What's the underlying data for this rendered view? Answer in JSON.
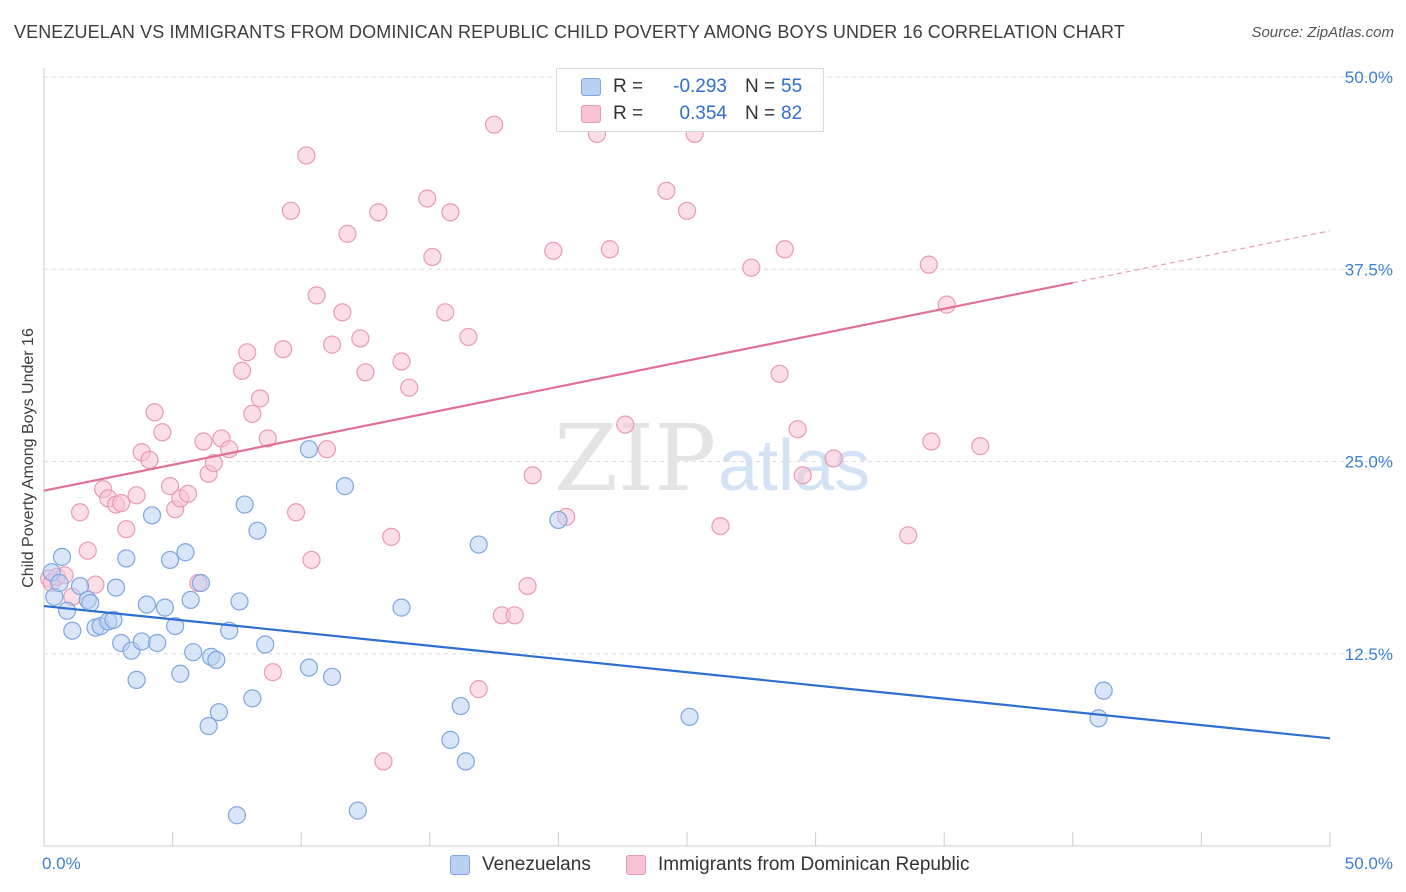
{
  "title": "VENEZUELAN VS IMMIGRANTS FROM DOMINICAN REPUBLIC CHILD POVERTY AMONG BOYS UNDER 16 CORRELATION CHART",
  "source": "Source: ZipAtlas.com",
  "watermark": {
    "zip": "ZIP",
    "atlas": "atlas"
  },
  "legend_top": [
    {
      "r_label": "R =",
      "r_value": "-0.293",
      "n_label": "N =",
      "n_value": "55"
    },
    {
      "r_label": "R =",
      "r_value": "0.354",
      "n_label": "N =",
      "n_value": "82"
    }
  ],
  "legend_bottom": [
    "Venezuelans",
    "Immigrants from Dominican Republic"
  ],
  "colors": {
    "blue_fill": "#b9d0f3",
    "blue_stroke": "#7ea6e0",
    "blue_line": "#2e6fd1",
    "pink_fill": "#f7c3d3",
    "pink_stroke": "#e99ab4",
    "pink_line": "#e0709a",
    "axis_label": "#3d7fd6",
    "grid": "#dddddd"
  },
  "chart_data": {
    "type": "scatter",
    "title": "VENEZUELAN VS IMMIGRANTS FROM DOMINICAN REPUBLIC CHILD POVERTY AMONG BOYS UNDER 16 CORRELATION CHART",
    "xlabel": "",
    "ylabel": "Child Poverty Among Boys Under 16",
    "xlim": [
      0,
      50
    ],
    "ylim": [
      0,
      50
    ],
    "x_tick_labels": [
      "0.0%",
      "50.0%"
    ],
    "y_tick_labels": [
      "12.5%",
      "25.0%",
      "37.5%",
      "50.0%"
    ],
    "y_ticks": [
      12.5,
      25.0,
      37.5,
      50.0
    ],
    "series": [
      {
        "name": "Venezuelans",
        "color": "#b9d0f3",
        "r": -0.293,
        "n": 55,
        "trend": {
          "x0": 0,
          "y0": 15.6,
          "x1": 50,
          "y1": 7.0,
          "solid_to": 50
        },
        "points": [
          [
            0.3,
            17.8
          ],
          [
            0.4,
            16.2
          ],
          [
            0.6,
            17.1
          ],
          [
            0.7,
            18.8
          ],
          [
            0.9,
            15.3
          ],
          [
            1.1,
            14.0
          ],
          [
            1.4,
            16.9
          ],
          [
            1.7,
            16.0
          ],
          [
            1.8,
            15.8
          ],
          [
            2.0,
            14.2
          ],
          [
            2.2,
            14.3
          ],
          [
            2.5,
            14.6
          ],
          [
            2.7,
            14.7
          ],
          [
            2.8,
            16.8
          ],
          [
            3.0,
            13.2
          ],
          [
            3.2,
            18.7
          ],
          [
            3.4,
            12.7
          ],
          [
            3.6,
            10.8
          ],
          [
            3.8,
            13.3
          ],
          [
            4.0,
            15.7
          ],
          [
            4.2,
            21.5
          ],
          [
            4.4,
            13.2
          ],
          [
            4.7,
            15.5
          ],
          [
            4.9,
            18.6
          ],
          [
            5.1,
            14.3
          ],
          [
            5.3,
            11.2
          ],
          [
            5.5,
            19.1
          ],
          [
            5.7,
            16.0
          ],
          [
            5.8,
            12.6
          ],
          [
            6.1,
            17.1
          ],
          [
            6.4,
            7.8
          ],
          [
            6.5,
            12.3
          ],
          [
            6.7,
            12.1
          ],
          [
            6.8,
            8.7
          ],
          [
            7.2,
            14.0
          ],
          [
            7.5,
            2.0
          ],
          [
            7.6,
            15.9
          ],
          [
            7.8,
            22.2
          ],
          [
            8.1,
            9.6
          ],
          [
            8.3,
            20.5
          ],
          [
            8.6,
            13.1
          ],
          [
            10.3,
            25.8
          ],
          [
            10.3,
            11.6
          ],
          [
            11.2,
            11.0
          ],
          [
            11.7,
            23.4
          ],
          [
            12.2,
            2.3
          ],
          [
            13.9,
            15.5
          ],
          [
            15.8,
            6.9
          ],
          [
            16.2,
            9.1
          ],
          [
            16.4,
            5.5
          ],
          [
            16.9,
            19.6
          ],
          [
            20.0,
            21.2
          ],
          [
            25.1,
            8.4
          ],
          [
            41.0,
            8.3
          ],
          [
            41.2,
            10.1
          ]
        ]
      },
      {
        "name": "Immigrants from Dominican Republic",
        "color": "#f7c3d3",
        "r": 0.354,
        "n": 82,
        "trend": {
          "x0": 0,
          "y0": 23.1,
          "x1": 50,
          "y1": 40.0,
          "solid_to": 40
        },
        "points": [
          [
            0.2,
            17.4
          ],
          [
            0.3,
            17.1
          ],
          [
            0.5,
            17.5
          ],
          [
            0.8,
            17.6
          ],
          [
            1.1,
            16.2
          ],
          [
            1.4,
            21.7
          ],
          [
            1.7,
            19.2
          ],
          [
            2.0,
            17.0
          ],
          [
            2.3,
            23.2
          ],
          [
            2.5,
            22.6
          ],
          [
            2.8,
            22.2
          ],
          [
            3.0,
            22.3
          ],
          [
            3.2,
            20.6
          ],
          [
            3.6,
            22.8
          ],
          [
            3.8,
            25.6
          ],
          [
            4.1,
            25.1
          ],
          [
            4.3,
            28.2
          ],
          [
            4.6,
            26.9
          ],
          [
            4.9,
            23.4
          ],
          [
            5.1,
            21.9
          ],
          [
            5.3,
            22.6
          ],
          [
            5.6,
            22.9
          ],
          [
            6.0,
            17.1
          ],
          [
            6.2,
            26.3
          ],
          [
            6.4,
            24.2
          ],
          [
            6.6,
            24.9
          ],
          [
            6.9,
            26.5
          ],
          [
            7.2,
            25.8
          ],
          [
            7.7,
            30.9
          ],
          [
            7.9,
            32.1
          ],
          [
            8.1,
            28.1
          ],
          [
            8.4,
            29.1
          ],
          [
            8.7,
            26.5
          ],
          [
            8.9,
            11.3
          ],
          [
            9.3,
            32.3
          ],
          [
            9.6,
            41.3
          ],
          [
            9.8,
            21.7
          ],
          [
            10.2,
            44.9
          ],
          [
            10.4,
            18.6
          ],
          [
            10.6,
            35.8
          ],
          [
            11.0,
            25.8
          ],
          [
            11.2,
            32.6
          ],
          [
            11.6,
            34.7
          ],
          [
            11.8,
            39.8
          ],
          [
            12.3,
            33.0
          ],
          [
            12.5,
            30.8
          ],
          [
            13.0,
            41.2
          ],
          [
            13.2,
            5.5
          ],
          [
            13.5,
            20.1
          ],
          [
            13.9,
            31.5
          ],
          [
            14.2,
            29.8
          ],
          [
            14.9,
            42.1
          ],
          [
            15.1,
            38.3
          ],
          [
            15.6,
            34.7
          ],
          [
            15.8,
            41.2
          ],
          [
            16.5,
            33.1
          ],
          [
            16.9,
            10.2
          ],
          [
            17.5,
            46.9
          ],
          [
            17.8,
            15.0
          ],
          [
            18.3,
            15.0
          ],
          [
            18.8,
            16.9
          ],
          [
            19.0,
            24.1
          ],
          [
            19.8,
            38.7
          ],
          [
            20.3,
            21.4
          ],
          [
            21.5,
            46.3
          ],
          [
            22.0,
            38.8
          ],
          [
            22.6,
            27.4
          ],
          [
            24.2,
            42.6
          ],
          [
            25.0,
            41.3
          ],
          [
            25.3,
            46.3
          ],
          [
            26.3,
            20.8
          ],
          [
            27.5,
            37.6
          ],
          [
            28.6,
            30.7
          ],
          [
            28.8,
            38.8
          ],
          [
            29.3,
            27.1
          ],
          [
            29.5,
            24.1
          ],
          [
            30.7,
            25.2
          ],
          [
            33.6,
            20.2
          ],
          [
            34.4,
            37.8
          ],
          [
            34.5,
            26.3
          ],
          [
            35.1,
            35.2
          ],
          [
            36.4,
            26.0
          ]
        ]
      }
    ]
  }
}
